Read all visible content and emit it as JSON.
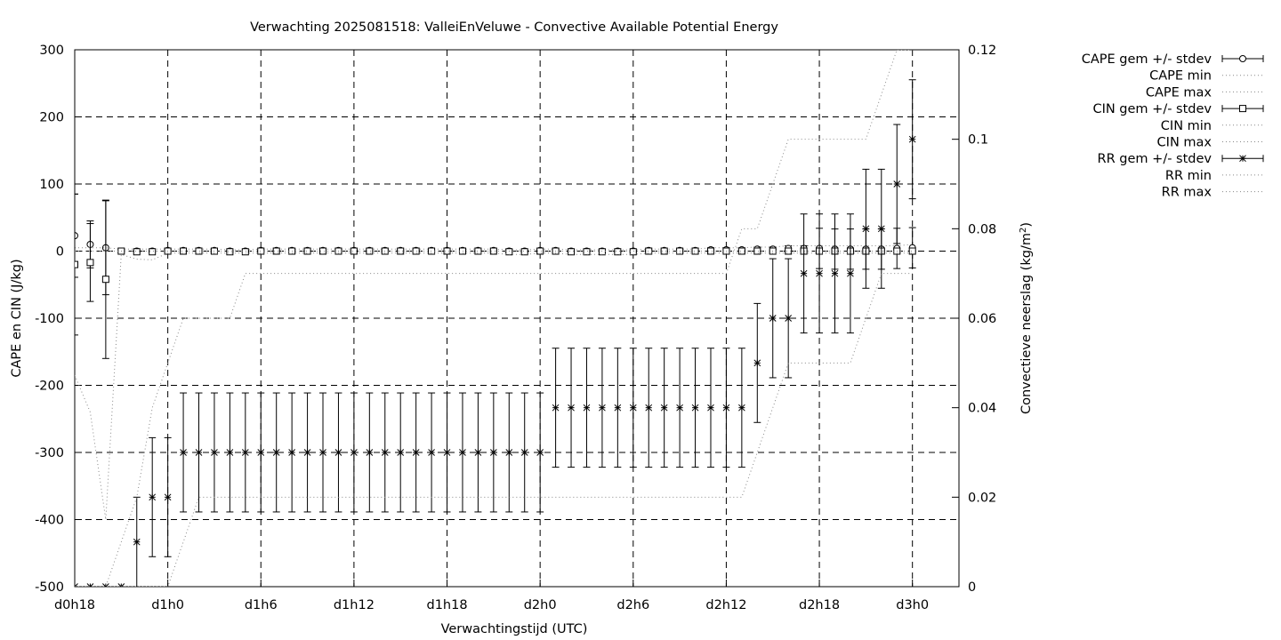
{
  "chart_data": {
    "type": "line",
    "title": "Verwachting 2025081518: ValleiEnVeluwe - Convective Available Potential Energy",
    "xlabel": "Verwachtingstijd (UTC)",
    "ylabel": "CAPE en CIN (J/kg)",
    "y2label_main": "Convectieve neerslag (kg/m",
    "y2label_sup": "2",
    "y2label_end": ")",
    "xlim": [
      18,
      75
    ],
    "ylim": [
      -500,
      300
    ],
    "y2lim": [
      0,
      0.12
    ],
    "grid": true,
    "legend_position": "outside-right",
    "x_ticks": [
      {
        "x": 18,
        "label": "d0h18"
      },
      {
        "x": 24,
        "label": "d1h0"
      },
      {
        "x": 30,
        "label": "d1h6"
      },
      {
        "x": 36,
        "label": "d1h12"
      },
      {
        "x": 42,
        "label": "d1h18"
      },
      {
        "x": 48,
        "label": "d2h0"
      },
      {
        "x": 54,
        "label": "d2h6"
      },
      {
        "x": 60,
        "label": "d2h12"
      },
      {
        "x": 66,
        "label": "d2h18"
      },
      {
        "x": 72,
        "label": "d3h0"
      }
    ],
    "y_ticks": [
      "-500",
      "-400",
      "-300",
      "-200",
      "-100",
      "0",
      "100",
      "200",
      "300"
    ],
    "y2_ticks": [
      "0",
      "0.02",
      "0.04",
      "0.06",
      "0.08",
      "0.1",
      "0.12"
    ],
    "x": [
      18,
      19,
      20,
      21,
      22,
      23,
      24,
      25,
      26,
      27,
      28,
      29,
      30,
      31,
      32,
      33,
      34,
      35,
      36,
      37,
      38,
      39,
      40,
      41,
      42,
      43,
      44,
      45,
      46,
      47,
      48,
      49,
      50,
      51,
      52,
      53,
      54,
      55,
      56,
      57,
      58,
      59,
      60,
      61,
      62,
      63,
      64,
      65,
      66,
      67,
      68,
      69,
      70,
      71,
      72
    ],
    "series": [
      {
        "name": "CAPE gem +/- stdev",
        "axis": "y1",
        "marker": "circle",
        "values": [
          23,
          10,
          5,
          0,
          0,
          0,
          1,
          1,
          1,
          1,
          0,
          0,
          1,
          1,
          1,
          1,
          1,
          1,
          1,
          1,
          1,
          1,
          1,
          1,
          1,
          1,
          1,
          1,
          0,
          0,
          1,
          1,
          0,
          0,
          0,
          0,
          0,
          1,
          1,
          1,
          1,
          2,
          2,
          2,
          3,
          3,
          4,
          4,
          4,
          3,
          3,
          3,
          3,
          4,
          5
        ],
        "stdev": [
          62,
          35,
          70,
          0,
          0,
          0,
          2,
          2,
          2,
          2,
          1,
          1,
          2,
          2,
          2,
          2,
          2,
          2,
          2,
          2,
          2,
          2,
          2,
          2,
          2,
          2,
          2,
          2,
          1,
          1,
          2,
          2,
          1,
          1,
          1,
          1,
          1,
          2,
          2,
          2,
          2,
          3,
          3,
          3,
          3,
          3,
          4,
          4,
          30,
          30,
          30,
          30,
          30,
          30,
          30
        ]
      },
      {
        "name": "CAPE min",
        "axis": "y1",
        "style": "dotted",
        "values": [
          0,
          0,
          0,
          0,
          0,
          0,
          0,
          0,
          0,
          0,
          0,
          0,
          0,
          0,
          0,
          0,
          0,
          0,
          0,
          0,
          0,
          0,
          0,
          0,
          0,
          0,
          0,
          0,
          0,
          0,
          0,
          0,
          0,
          0,
          0,
          0,
          0,
          0,
          0,
          0,
          0,
          0,
          0,
          0,
          0,
          0,
          0,
          0,
          0,
          0,
          0,
          0,
          0,
          0,
          0
        ]
      },
      {
        "name": "CAPE max",
        "axis": "y1",
        "style": "dotted",
        "values": [
          5,
          5,
          5,
          3,
          3,
          3,
          3,
          3,
          3,
          3,
          2,
          2,
          3,
          3,
          3,
          3,
          3,
          3,
          3,
          3,
          3,
          3,
          3,
          3,
          3,
          3,
          3,
          3,
          2,
          2,
          3,
          3,
          2,
          2,
          2,
          2,
          2,
          3,
          3,
          3,
          3,
          5,
          5,
          5,
          6,
          6,
          8,
          8,
          8,
          8,
          8,
          8,
          8,
          8,
          10
        ]
      },
      {
        "name": "CIN gem +/- stdev",
        "axis": "y1",
        "marker": "square",
        "values": [
          -20,
          -17,
          -42,
          0,
          -1,
          -1,
          0,
          0,
          0,
          0,
          -1,
          -1,
          0,
          0,
          0,
          0,
          0,
          0,
          0,
          0,
          0,
          0,
          0,
          0,
          0,
          0,
          0,
          0,
          -1,
          -1,
          0,
          0,
          -1,
          -1,
          -1,
          -1,
          -1,
          0,
          0,
          0,
          0,
          0,
          0,
          0,
          0,
          0,
          0,
          0,
          0,
          0,
          0,
          0,
          0,
          0,
          0
        ],
        "stdev": [
          105,
          58,
          118,
          1,
          1,
          1,
          1,
          1,
          1,
          1,
          1,
          1,
          1,
          1,
          1,
          1,
          1,
          1,
          1,
          1,
          1,
          1,
          1,
          1,
          1,
          1,
          1,
          1,
          1,
          1,
          1,
          1,
          1,
          1,
          1,
          1,
          1,
          1,
          1,
          1,
          1,
          1,
          1,
          1,
          1,
          1,
          1,
          1,
          1,
          1,
          1,
          1,
          1,
          1,
          1
        ]
      },
      {
        "name": "CIN min",
        "axis": "y1",
        "style": "dotted",
        "values": [
          -185,
          -240,
          -400,
          -5,
          -12,
          -13,
          -3,
          -3,
          -3,
          -3,
          -3,
          -3,
          -3,
          -3,
          -3,
          -3,
          -3,
          -3,
          -3,
          -3,
          -3,
          -3,
          -3,
          -3,
          -3,
          -3,
          -3,
          -3,
          -5,
          -5,
          -3,
          -3,
          -5,
          -5,
          -5,
          -5,
          -5,
          -3,
          -3,
          -3,
          -3,
          -3,
          -3,
          -3,
          -3,
          -3,
          -3,
          -3,
          -3,
          -3,
          -3,
          -3,
          -3,
          -3,
          -3
        ]
      },
      {
        "name": "CIN max",
        "axis": "y1",
        "style": "dotted",
        "values": [
          0,
          0,
          0,
          0,
          0,
          0,
          0,
          0,
          0,
          0,
          0,
          0,
          0,
          0,
          0,
          0,
          0,
          0,
          0,
          0,
          0,
          0,
          0,
          0,
          0,
          0,
          0,
          0,
          0,
          0,
          0,
          0,
          0,
          0,
          0,
          0,
          0,
          0,
          0,
          0,
          0,
          0,
          0,
          0,
          0,
          0,
          0,
          0,
          0,
          0,
          0,
          0,
          0,
          0,
          0
        ]
      },
      {
        "name": "RR gem +/- stdev",
        "axis": "y2",
        "marker": "star",
        "values": [
          0,
          0,
          0,
          0,
          0.01,
          0.02,
          0.02,
          0.03,
          0.03,
          0.03,
          0.03,
          0.03,
          0.03,
          0.03,
          0.03,
          0.03,
          0.03,
          0.03,
          0.03,
          0.03,
          0.03,
          0.03,
          0.03,
          0.03,
          0.03,
          0.03,
          0.03,
          0.03,
          0.03,
          0.03,
          0.03,
          0.04,
          0.04,
          0.04,
          0.04,
          0.04,
          0.04,
          0.04,
          0.04,
          0.04,
          0.04,
          0.04,
          0.04,
          0.04,
          0.05,
          0.06,
          0.06,
          0.07,
          0.07,
          0.07,
          0.07,
          0.08,
          0.08,
          0.09,
          0.1
        ],
        "stdev": [
          0,
          0,
          0,
          0,
          0.01,
          0.0133,
          0.0133,
          0.0133,
          0.0133,
          0.0133,
          0.0133,
          0.0133,
          0.0133,
          0.0133,
          0.0133,
          0.0133,
          0.0133,
          0.0133,
          0.0133,
          0.0133,
          0.0133,
          0.0133,
          0.0133,
          0.0133,
          0.0133,
          0.0133,
          0.0133,
          0.0133,
          0.0133,
          0.0133,
          0.0133,
          0.0133,
          0.0133,
          0.0133,
          0.0133,
          0.0133,
          0.0133,
          0.0133,
          0.0133,
          0.0133,
          0.0133,
          0.0133,
          0.0133,
          0.0133,
          0.0133,
          0.0133,
          0.0133,
          0.0133,
          0.0133,
          0.0133,
          0.0133,
          0.0133,
          0.0133,
          0.0133,
          0.0133
        ]
      },
      {
        "name": "RR min",
        "axis": "y2",
        "style": "dotted",
        "values": [
          0,
          0,
          0,
          0,
          0,
          0,
          0,
          0.01,
          0.02,
          0.02,
          0.02,
          0.02,
          0.02,
          0.02,
          0.02,
          0.02,
          0.02,
          0.02,
          0.02,
          0.02,
          0.02,
          0.02,
          0.02,
          0.02,
          0.02,
          0.02,
          0.02,
          0.02,
          0.02,
          0.02,
          0.02,
          0.02,
          0.02,
          0.02,
          0.02,
          0.02,
          0.02,
          0.02,
          0.02,
          0.02,
          0.02,
          0.02,
          0.02,
          0.02,
          0.03,
          0.04,
          0.05,
          0.05,
          0.05,
          0.05,
          0.05,
          0.06,
          0.07,
          0.07,
          0.07
        ]
      },
      {
        "name": "RR max",
        "axis": "y2",
        "style": "dotted",
        "values": [
          0,
          0,
          0,
          0.01,
          0.02,
          0.04,
          0.05,
          0.06,
          0.06,
          0.06,
          0.06,
          0.07,
          0.07,
          0.07,
          0.07,
          0.07,
          0.07,
          0.07,
          0.07,
          0.07,
          0.07,
          0.07,
          0.07,
          0.07,
          0.07,
          0.07,
          0.07,
          0.07,
          0.07,
          0.07,
          0.07,
          0.07,
          0.07,
          0.07,
          0.07,
          0.07,
          0.07,
          0.07,
          0.07,
          0.07,
          0.07,
          0.07,
          0.07,
          0.08,
          0.08,
          0.09,
          0.1,
          0.1,
          0.1,
          0.1,
          0.1,
          0.1,
          0.11,
          0.12,
          0.12
        ]
      }
    ]
  }
}
